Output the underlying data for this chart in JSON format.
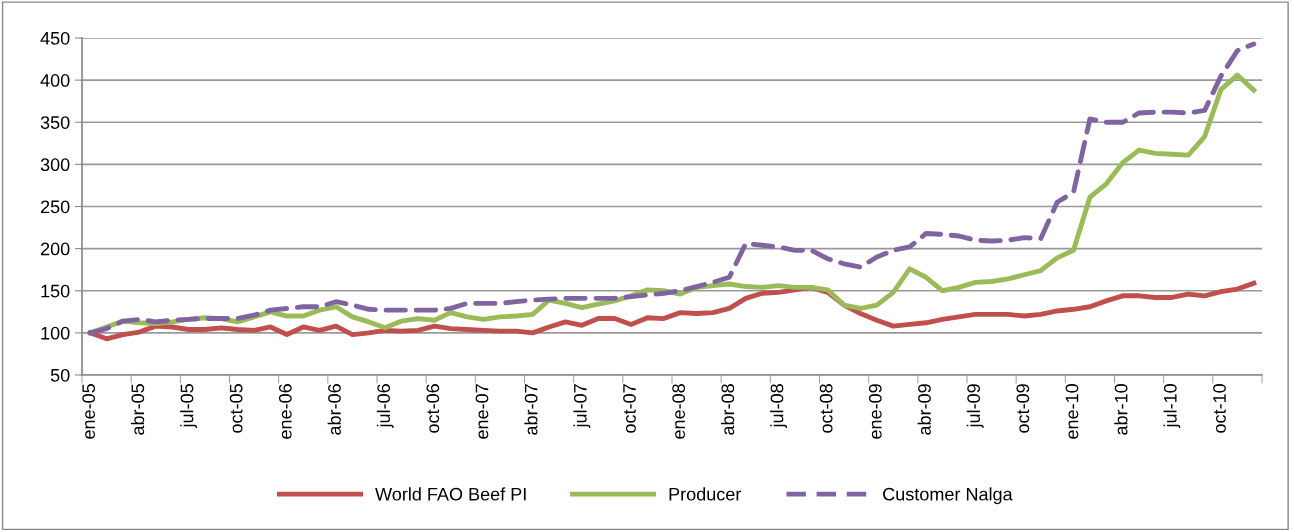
{
  "chart_data": {
    "type": "line",
    "categories": [
      "ene-05",
      null,
      null,
      "abr-05",
      null,
      null,
      "jul-05",
      null,
      null,
      "oct-05",
      null,
      null,
      "ene-06",
      null,
      null,
      "abr-06",
      null,
      null,
      "jul-06",
      null,
      null,
      "oct-06",
      null,
      null,
      "ene-07",
      null,
      null,
      "abr-07",
      null,
      null,
      "jul-07",
      null,
      null,
      "oct-07",
      null,
      null,
      "ene-08",
      null,
      null,
      "abr-08",
      null,
      null,
      "jul-08",
      null,
      null,
      "oct-08",
      null,
      null,
      "ene-09",
      null,
      null,
      "abr-09",
      null,
      null,
      "jul-09",
      null,
      null,
      "oct-09",
      null,
      null,
      "ene-10",
      null,
      null,
      "abr-10",
      null,
      null,
      "jul-10",
      null,
      null,
      "oct-10",
      null,
      null
    ],
    "series": [
      {
        "name": "World FAO Beef PI",
        "color": "#c0504d",
        "line_style": "solid",
        "values": [
          100,
          93,
          98,
          101,
          108,
          107,
          104,
          104,
          106,
          104,
          103,
          107,
          98,
          107,
          103,
          108,
          98,
          100,
          103,
          102,
          103,
          108,
          105,
          104,
          103,
          102,
          102,
          100,
          107,
          113,
          109,
          117,
          117,
          110,
          118,
          117,
          124,
          123,
          124,
          129,
          141,
          147,
          148,
          151,
          154,
          148,
          133,
          123,
          115,
          108,
          110,
          112,
          116,
          119,
          122,
          122,
          122,
          120,
          122,
          126,
          128,
          131,
          138,
          144,
          144,
          142,
          142,
          146,
          144,
          149,
          152,
          159
        ]
      },
      {
        "name": "Producer",
        "color": "#9bbb59",
        "line_style": "solid",
        "values": [
          100,
          107,
          114,
          112,
          111,
          113,
          116,
          118,
          117,
          113,
          119,
          125,
          120,
          120,
          127,
          131,
          119,
          113,
          106,
          114,
          117,
          115,
          124,
          119,
          116,
          119,
          120,
          122,
          139,
          135,
          130,
          134,
          138,
          144,
          151,
          150,
          146,
          154,
          156,
          158,
          155,
          154,
          156,
          154,
          154,
          151,
          133,
          129,
          133,
          148,
          176,
          166,
          150,
          154,
          160,
          161,
          164,
          169,
          174,
          189,
          198,
          261,
          277,
          302,
          317,
          313,
          312,
          311,
          333,
          389,
          406,
          388
        ]
      },
      {
        "name": "Customer Nalga",
        "color": "#8064a2",
        "line_style": "dashed",
        "values": [
          100,
          105,
          114,
          116,
          113,
          115,
          116,
          117,
          117,
          117,
          121,
          127,
          129,
          131,
          131,
          137,
          133,
          128,
          127,
          127,
          127,
          127,
          129,
          135,
          135,
          135,
          137,
          139,
          140,
          141,
          141,
          141,
          141,
          143,
          145,
          147,
          150,
          155,
          160,
          166,
          206,
          204,
          202,
          198,
          198,
          188,
          182,
          178,
          190,
          198,
          202,
          218,
          217,
          215,
          210,
          209,
          210,
          213,
          212,
          255,
          267,
          354,
          350,
          350,
          361,
          362,
          362,
          361,
          364,
          405,
          435,
          443
        ]
      }
    ],
    "ylim": [
      50,
      450
    ],
    "yticks": [
      50,
      100,
      150,
      200,
      250,
      300,
      350,
      400,
      450
    ],
    "grid": "y",
    "legend": "bottom",
    "marker": "none"
  }
}
